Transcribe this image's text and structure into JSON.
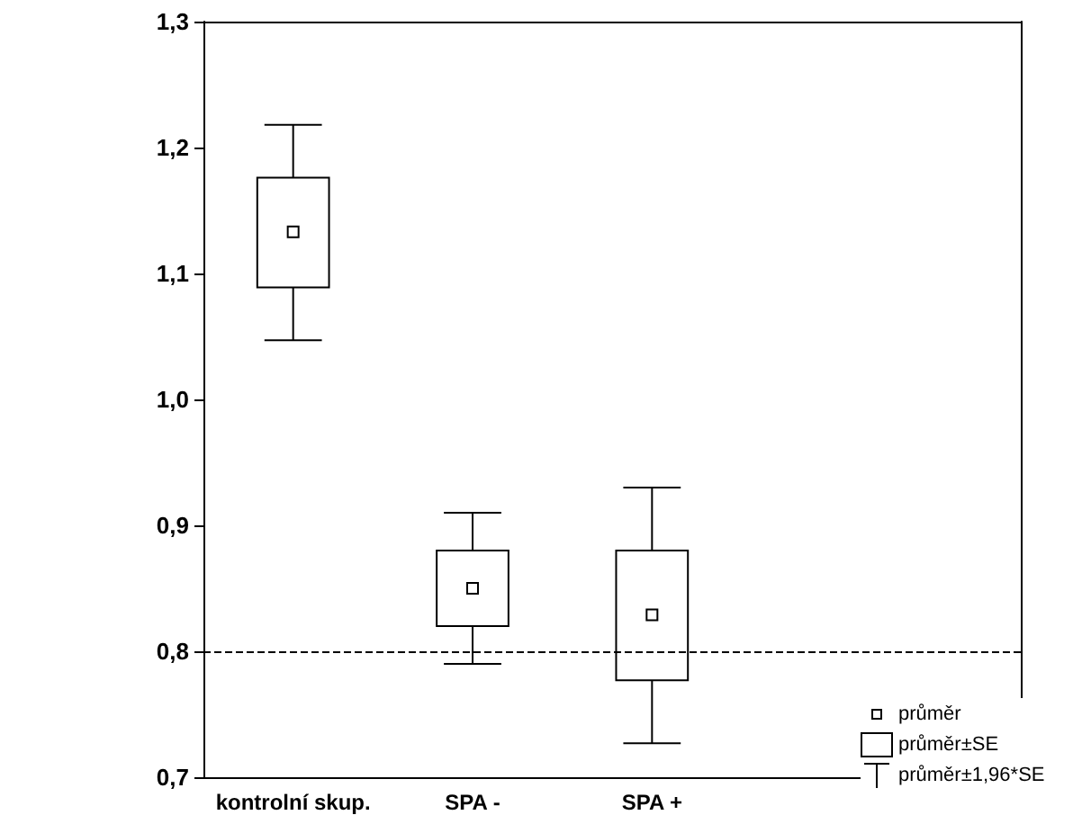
{
  "chart_data": {
    "type": "box",
    "categories": [
      "kontrolní skup.",
      "SPA -",
      "SPA +"
    ],
    "boxes": [
      {
        "low": 1.047,
        "q1": 1.089,
        "q3": 1.176,
        "high": 1.218,
        "mean": 1.133
      },
      {
        "low": 0.79,
        "q1": 0.82,
        "q3": 0.88,
        "high": 0.91,
        "mean": 0.85
      },
      {
        "low": 0.727,
        "q1": 0.777,
        "q3": 0.88,
        "high": 0.93,
        "mean": 0.829
      }
    ],
    "color": "#000000",
    "ylim": [
      0.7,
      1.3
    ],
    "yticks": [
      {
        "value": 0.7,
        "label": "0,7"
      },
      {
        "value": 0.8,
        "label": "0,8"
      },
      {
        "value": 0.9,
        "label": "0,9"
      },
      {
        "value": 1.0,
        "label": "1,0"
      },
      {
        "value": 1.1,
        "label": "1,1"
      },
      {
        "value": 1.2,
        "label": "1,2"
      },
      {
        "value": 1.3,
        "label": "1,3"
      }
    ],
    "ref_lines": [
      {
        "axis": "y",
        "value": 0.8,
        "line_style": "dashed",
        "color": "#000000"
      }
    ],
    "annotations": [
      "průměr",
      "průměr±SE",
      "průměr±1,96*SE"
    ],
    "marker": "square",
    "grid": false
  }
}
